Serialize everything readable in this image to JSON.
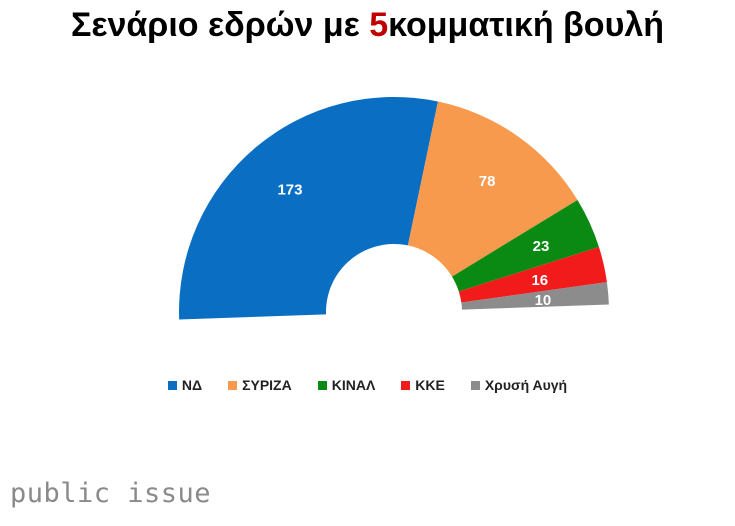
{
  "title": {
    "prefix": "Σενάριο εδρών με ",
    "accent": "5",
    "suffix": "κομματική βουλή",
    "accent_color": "#c00000"
  },
  "chart_data": {
    "type": "pie",
    "variant": "semicircle-parliament",
    "categories": [
      "ΝΔ",
      "ΣΥΡΙΖΑ",
      "ΚΙΝΑΛ",
      "ΚΚΕ",
      "Χρυσή Αυγή"
    ],
    "values": [
      173,
      78,
      23,
      16,
      10
    ],
    "colors": [
      "#0a6fc2",
      "#f79a4e",
      "#0a8a12",
      "#f21b1b",
      "#8c8c8c"
    ],
    "data_labels": [
      "173",
      "78",
      "23",
      "16",
      "10"
    ],
    "legend_position": "bottom"
  },
  "source": "public issue"
}
